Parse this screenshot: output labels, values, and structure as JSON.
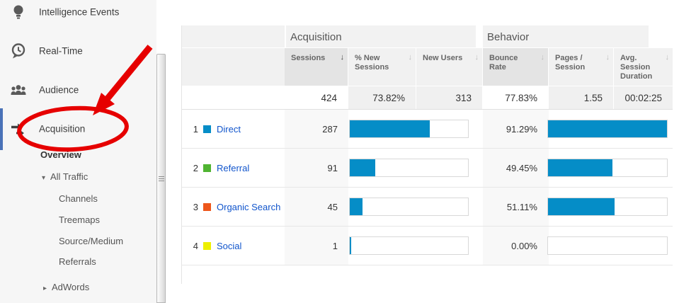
{
  "sidebar": {
    "nav": [
      {
        "label": "Intelligence Events"
      },
      {
        "label": "Real-Time"
      },
      {
        "label": "Audience"
      },
      {
        "label": "Acquisition",
        "active": true
      }
    ],
    "subnav": {
      "overview": "Overview",
      "all_traffic": "All Traffic",
      "channels": "Channels",
      "treemaps": "Treemaps",
      "source_medium": "Source/Medium",
      "referrals": "Referrals",
      "adwords": "AdWords"
    }
  },
  "icons": {
    "expanded": "▾",
    "collapsed": "▸",
    "sort_desc": "↓"
  },
  "colors": {
    "accent_blue": "#058dc7",
    "active_indicator": "#4a72b8",
    "annotation_red": "#e60000"
  },
  "table": {
    "group_headers": [
      {
        "label": "Acquisition"
      },
      {
        "label": "Behavior"
      }
    ],
    "columns": [
      {
        "label": "Sessions",
        "sorted": true,
        "highlighted": true
      },
      {
        "label": "% New Sessions"
      },
      {
        "label": "New Users"
      },
      {
        "label": "Bounce Rate",
        "highlighted": true
      },
      {
        "label": "Pages / Session"
      },
      {
        "label": "Avg. Session Duration"
      }
    ],
    "summary": {
      "sessions": "424",
      "pct_new_sessions": "73.82%",
      "new_users": "313",
      "bounce_rate": "77.83%",
      "pages_per_session": "1.55",
      "avg_session_duration": "00:02:25"
    },
    "rows": [
      {
        "rank": "1",
        "channel": "Direct",
        "color": "#058dc7",
        "sessions": "287",
        "sessions_bar_pct": 67.7,
        "bounce_rate": "91.29%",
        "bounce_bar_pct": 100
      },
      {
        "rank": "2",
        "channel": "Referral",
        "color": "#50b432",
        "sessions": "91",
        "sessions_bar_pct": 21.5,
        "bounce_rate": "49.45%",
        "bounce_bar_pct": 54.2
      },
      {
        "rank": "3",
        "channel": "Organic Search",
        "color": "#ed561b",
        "sessions": "45",
        "sessions_bar_pct": 10.6,
        "bounce_rate": "51.11%",
        "bounce_bar_pct": 56
      },
      {
        "rank": "4",
        "channel": "Social",
        "color": "#edef00",
        "sessions": "1",
        "sessions_bar_pct": 0.3,
        "bounce_rate": "0.00%",
        "bounce_bar_pct": 0
      }
    ]
  }
}
